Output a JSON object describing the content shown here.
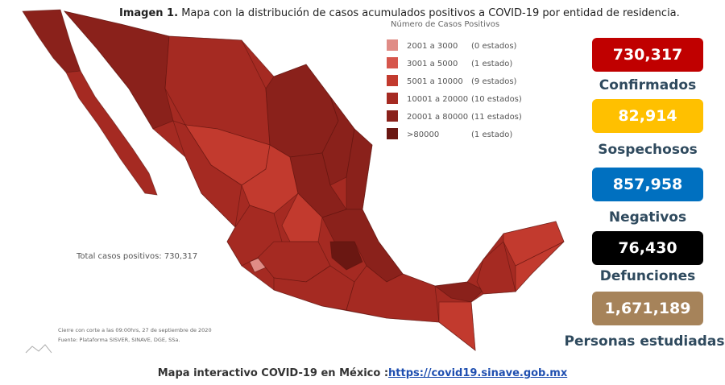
{
  "header": {
    "title_bold": "Imagen 1.",
    "title": "Mapa con la distribución de casos acumulados positivos a COVID-19 por entidad de residencia."
  },
  "legend": {
    "title": "Número de Casos Positivos",
    "items": [
      {
        "range": "2001 a   3000",
        "count": "(0 estados)",
        "color": "#e08c86"
      },
      {
        "range": "3001 a   5000",
        "count": "(1 estado)",
        "color": "#d6564c"
      },
      {
        "range": "5001 a  10000",
        "count": "(9 estados)",
        "color": "#c23a2e"
      },
      {
        "range": "10001 a  20000",
        "count": "(10 estados)",
        "color": "#a52a22"
      },
      {
        "range": "20001 a  80000",
        "count": "(11 estados)",
        "color": "#8a211b"
      },
      {
        "range": ">80000",
        "count": "(1 estado)",
        "color": "#6a1712"
      }
    ]
  },
  "map": {
    "total": "Total casos positivos: 730,317",
    "notes": [
      "Cierre con corte a las 09:00hrs, 27 de septiembre de 2020",
      "Fuente: Plataforma SISVER, SINAVE, DGE, SSa."
    ]
  },
  "stats": [
    {
      "value": "730,317",
      "label": "Confirmados",
      "color": "#c00000"
    },
    {
      "value": "82,914",
      "label": "Sospechosos",
      "color": "#ffc000"
    },
    {
      "value": "857,958",
      "label": "Negativos",
      "color": "#0070c0"
    },
    {
      "value": "76,430",
      "label": "Defunciones",
      "color": "#000000"
    },
    {
      "value": "1,671,189",
      "label": "Personas estudiadas",
      "color": "#a6835a"
    }
  ],
  "footer": {
    "text": "Mapa interactivo COVID-19 en México :",
    "link": "https://covid19.sinave.gob.mx"
  }
}
